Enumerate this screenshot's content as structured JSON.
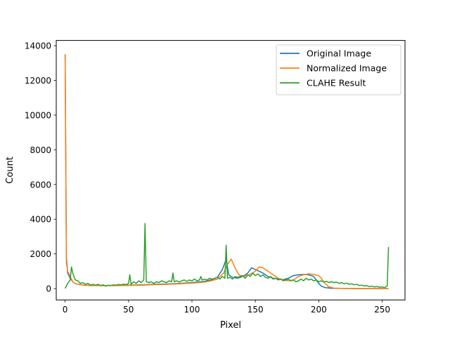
{
  "chart_data": {
    "type": "line",
    "title": "",
    "xlabel": "Pixel",
    "ylabel": "Count",
    "xlim": [
      -7,
      268
    ],
    "ylim": [
      -650,
      14300
    ],
    "xticks": [
      0,
      50,
      100,
      150,
      200,
      250
    ],
    "yticks": [
      0,
      2000,
      4000,
      6000,
      8000,
      10000,
      12000,
      14000
    ],
    "grid": false,
    "legend_position": "top-right",
    "series": [
      {
        "name": "Original Image",
        "color": "#1f77b4",
        "points": [
          [
            0,
            13500
          ],
          [
            1,
            1800
          ],
          [
            2,
            900
          ],
          [
            4,
            600
          ],
          [
            6,
            400
          ],
          [
            8,
            300
          ],
          [
            10,
            250
          ],
          [
            15,
            200
          ],
          [
            20,
            180
          ],
          [
            30,
            170
          ],
          [
            40,
            180
          ],
          [
            50,
            200
          ],
          [
            60,
            220
          ],
          [
            70,
            250
          ],
          [
            80,
            270
          ],
          [
            90,
            300
          ],
          [
            100,
            350
          ],
          [
            110,
            420
          ],
          [
            115,
            500
          ],
          [
            120,
            650
          ],
          [
            124,
            1100
          ],
          [
            127,
            1700
          ],
          [
            129,
            800
          ],
          [
            132,
            650
          ],
          [
            136,
            600
          ],
          [
            140,
            700
          ],
          [
            144,
            900
          ],
          [
            147,
            1200
          ],
          [
            150,
            1100
          ],
          [
            153,
            1000
          ],
          [
            156,
            900
          ],
          [
            160,
            700
          ],
          [
            164,
            600
          ],
          [
            168,
            550
          ],
          [
            172,
            520
          ],
          [
            176,
            600
          ],
          [
            180,
            750
          ],
          [
            184,
            800
          ],
          [
            188,
            820
          ],
          [
            192,
            800
          ],
          [
            196,
            700
          ],
          [
            198,
            500
          ],
          [
            200,
            300
          ],
          [
            202,
            150
          ],
          [
            205,
            60
          ],
          [
            210,
            20
          ],
          [
            220,
            10
          ],
          [
            230,
            5
          ],
          [
            240,
            5
          ],
          [
            250,
            5
          ],
          [
            255,
            5
          ]
        ]
      },
      {
        "name": "Normalized Image",
        "color": "#ff7f0e",
        "points": [
          [
            0,
            13500
          ],
          [
            1,
            1500
          ],
          [
            2,
            1000
          ],
          [
            4,
            700
          ],
          [
            6,
            400
          ],
          [
            8,
            300
          ],
          [
            10,
            250
          ],
          [
            15,
            200
          ],
          [
            20,
            180
          ],
          [
            30,
            170
          ],
          [
            40,
            170
          ],
          [
            50,
            180
          ],
          [
            60,
            200
          ],
          [
            70,
            230
          ],
          [
            80,
            250
          ],
          [
            90,
            280
          ],
          [
            100,
            320
          ],
          [
            110,
            380
          ],
          [
            115,
            450
          ],
          [
            120,
            550
          ],
          [
            125,
            900
          ],
          [
            128,
            1400
          ],
          [
            131,
            1700
          ],
          [
            134,
            1200
          ],
          [
            137,
            800
          ],
          [
            140,
            700
          ],
          [
            145,
            800
          ],
          [
            150,
            1000
          ],
          [
            153,
            1250
          ],
          [
            156,
            1200
          ],
          [
            160,
            1000
          ],
          [
            164,
            800
          ],
          [
            168,
            600
          ],
          [
            172,
            500
          ],
          [
            176,
            450
          ],
          [
            180,
            500
          ],
          [
            184,
            700
          ],
          [
            188,
            800
          ],
          [
            192,
            850
          ],
          [
            196,
            820
          ],
          [
            200,
            750
          ],
          [
            202,
            600
          ],
          [
            205,
            300
          ],
          [
            208,
            100
          ],
          [
            212,
            30
          ],
          [
            220,
            10
          ],
          [
            230,
            5
          ],
          [
            240,
            5
          ],
          [
            250,
            5
          ],
          [
            255,
            5
          ]
        ]
      },
      {
        "name": "CLAHE Result",
        "color": "#2ca02c",
        "points": [
          [
            0,
            10
          ],
          [
            2,
            300
          ],
          [
            4,
            500
          ],
          [
            5,
            1250
          ],
          [
            6,
            900
          ],
          [
            8,
            500
          ],
          [
            10,
            450
          ],
          [
            12,
            300
          ],
          [
            14,
            350
          ],
          [
            16,
            250
          ],
          [
            18,
            300
          ],
          [
            20,
            200
          ],
          [
            22,
            250
          ],
          [
            24,
            200
          ],
          [
            26,
            250
          ],
          [
            28,
            180
          ],
          [
            30,
            220
          ],
          [
            32,
            150
          ],
          [
            34,
            200
          ],
          [
            36,
            180
          ],
          [
            38,
            220
          ],
          [
            40,
            200
          ],
          [
            42,
            240
          ],
          [
            44,
            220
          ],
          [
            46,
            260
          ],
          [
            48,
            230
          ],
          [
            50,
            300
          ],
          [
            51,
            800
          ],
          [
            52,
            250
          ],
          [
            54,
            400
          ],
          [
            56,
            300
          ],
          [
            58,
            450
          ],
          [
            60,
            350
          ],
          [
            62,
            500
          ],
          [
            63,
            3750
          ],
          [
            64,
            400
          ],
          [
            66,
            350
          ],
          [
            68,
            400
          ],
          [
            70,
            300
          ],
          [
            72,
            400
          ],
          [
            74,
            350
          ],
          [
            76,
            450
          ],
          [
            78,
            400
          ],
          [
            80,
            350
          ],
          [
            82,
            450
          ],
          [
            84,
            400
          ],
          [
            85,
            900
          ],
          [
            86,
            400
          ],
          [
            88,
            450
          ],
          [
            90,
            380
          ],
          [
            92,
            450
          ],
          [
            94,
            500
          ],
          [
            96,
            420
          ],
          [
            98,
            500
          ],
          [
            100,
            450
          ],
          [
            102,
            550
          ],
          [
            104,
            450
          ],
          [
            106,
            500
          ],
          [
            107,
            700
          ],
          [
            108,
            500
          ],
          [
            110,
            550
          ],
          [
            112,
            500
          ],
          [
            114,
            600
          ],
          [
            116,
            550
          ],
          [
            118,
            600
          ],
          [
            120,
            650
          ],
          [
            122,
            550
          ],
          [
            124,
            700
          ],
          [
            126,
            600
          ],
          [
            127,
            2500
          ],
          [
            128,
            600
          ],
          [
            130,
            650
          ],
          [
            132,
            550
          ],
          [
            134,
            700
          ],
          [
            136,
            650
          ],
          [
            138,
            700
          ],
          [
            140,
            750
          ],
          [
            142,
            600
          ],
          [
            144,
            800
          ],
          [
            146,
            700
          ],
          [
            148,
            900
          ],
          [
            150,
            750
          ],
          [
            152,
            850
          ],
          [
            154,
            700
          ],
          [
            156,
            800
          ],
          [
            158,
            650
          ],
          [
            160,
            600
          ],
          [
            162,
            700
          ],
          [
            164,
            550
          ],
          [
            166,
            600
          ],
          [
            168,
            500
          ],
          [
            170,
            550
          ],
          [
            172,
            450
          ],
          [
            174,
            500
          ],
          [
            176,
            550
          ],
          [
            178,
            450
          ],
          [
            180,
            500
          ],
          [
            182,
            400
          ],
          [
            184,
            450
          ],
          [
            186,
            550
          ],
          [
            188,
            450
          ],
          [
            190,
            600
          ],
          [
            192,
            500
          ],
          [
            194,
            550
          ],
          [
            196,
            450
          ],
          [
            198,
            500
          ],
          [
            200,
            400
          ],
          [
            202,
            450
          ],
          [
            204,
            380
          ],
          [
            206,
            420
          ],
          [
            208,
            350
          ],
          [
            210,
            400
          ],
          [
            212,
            350
          ],
          [
            214,
            380
          ],
          [
            216,
            300
          ],
          [
            218,
            350
          ],
          [
            220,
            280
          ],
          [
            222,
            320
          ],
          [
            224,
            250
          ],
          [
            226,
            280
          ],
          [
            228,
            220
          ],
          [
            230,
            250
          ],
          [
            232,
            180
          ],
          [
            234,
            200
          ],
          [
            236,
            150
          ],
          [
            238,
            170
          ],
          [
            240,
            120
          ],
          [
            242,
            140
          ],
          [
            244,
            100
          ],
          [
            246,
            120
          ],
          [
            248,
            80
          ],
          [
            250,
            100
          ],
          [
            252,
            60
          ],
          [
            254,
            150
          ],
          [
            255,
            2400
          ]
        ]
      }
    ]
  }
}
